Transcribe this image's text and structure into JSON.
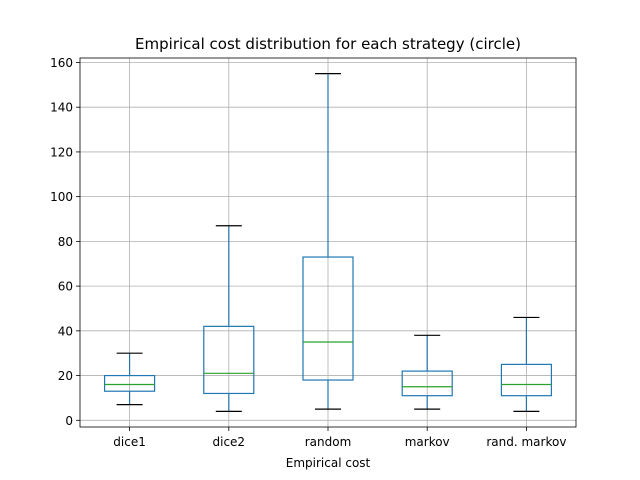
{
  "chart_data": {
    "type": "box",
    "title": "Empirical cost distribution for each strategy (circle)",
    "xlabel": "Empirical cost",
    "ylabel": "",
    "ylim": [
      -3,
      162
    ],
    "yticks": [
      0,
      20,
      40,
      60,
      80,
      100,
      120,
      140,
      160
    ],
    "grid": true,
    "categories": [
      "dice1",
      "dice2",
      "random",
      "markov",
      "rand. markov"
    ],
    "boxes": [
      {
        "label": "dice1",
        "whisker_low": 7,
        "q1": 13,
        "median": 16,
        "q3": 20,
        "whisker_high": 30
      },
      {
        "label": "dice2",
        "whisker_low": 4,
        "q1": 12,
        "median": 21,
        "q3": 42,
        "whisker_high": 87
      },
      {
        "label": "random",
        "whisker_low": 5,
        "q1": 18,
        "median": 35,
        "q3": 73,
        "whisker_high": 155
      },
      {
        "label": "markov",
        "whisker_low": 5,
        "q1": 11,
        "median": 15,
        "q3": 22,
        "whisker_high": 38
      },
      {
        "label": "rand. markov",
        "whisker_low": 4,
        "q1": 11,
        "median": 16,
        "q3": 25,
        "whisker_high": 46
      }
    ],
    "colors": {
      "box": "#1f77b4",
      "median": "#2ca02c",
      "cap": "#000000",
      "grid": "#b0b0b0",
      "axes": "#000000"
    }
  }
}
